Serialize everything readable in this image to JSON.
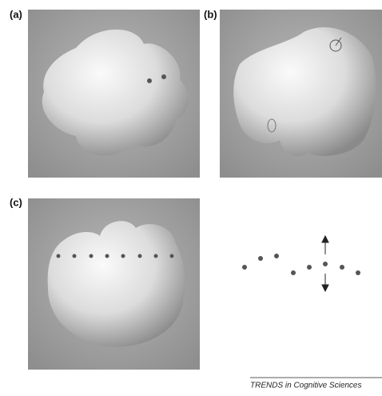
{
  "panels": [
    {
      "label": "(a)"
    },
    {
      "label": "(b)"
    },
    {
      "label": "(c)"
    }
  ],
  "footer": "TRENDS in Cognitive Sciences"
}
